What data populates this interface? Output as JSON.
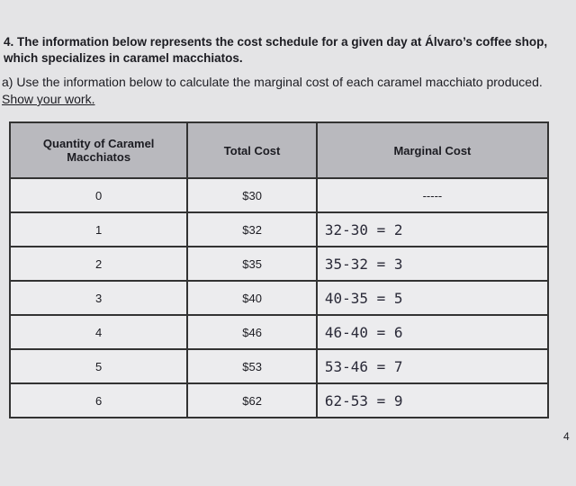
{
  "question": "4. The information below represents the cost schedule for a given day at Álvaro’s coffee shop, which specializes in caramel macchiatos.",
  "part_a": "a) Use the information below to calculate the marginal cost of each caramel macchiato produced.",
  "show_work": "Show your work.",
  "table": {
    "headers": [
      "Quantity of Caramel Macchiatos",
      "Total Cost",
      "Marginal Cost"
    ],
    "rows": [
      [
        "0",
        "$30",
        "-----"
      ],
      [
        "1",
        "$32",
        "32-30 = 2"
      ],
      [
        "2",
        "$35",
        "35-32 = 3"
      ],
      [
        "3",
        "$40",
        "40-35 = 5"
      ],
      [
        "4",
        "$46",
        "46-40 = 6"
      ],
      [
        "5",
        "$53",
        "53-46 = 7"
      ],
      [
        "6",
        "$62",
        "62-53 = 9"
      ]
    ]
  },
  "page_number": "4"
}
